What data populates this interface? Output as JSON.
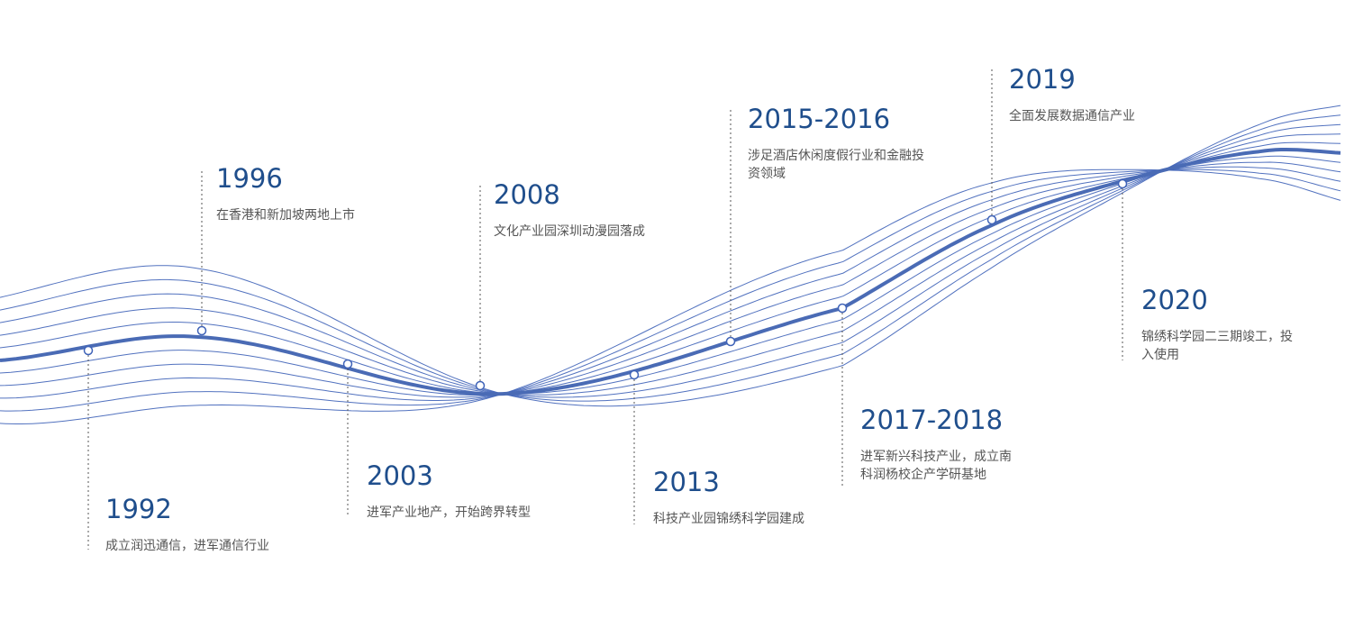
{
  "events": [
    {
      "year": "1992",
      "lines": [
        "成立润迅通信，进军通信行业"
      ]
    },
    {
      "year": "1996",
      "lines": [
        "在香港和新加坡两地上市"
      ]
    },
    {
      "year": "2003",
      "lines": [
        "进军产业地产，开始跨界转型"
      ]
    },
    {
      "year": "2008",
      "lines": [
        "文化产业园深圳动漫园落成"
      ]
    },
    {
      "year": "2013",
      "lines": [
        "科技产业园锦绣科学园建成"
      ]
    },
    {
      "year": "2015-2016",
      "lines": [
        "涉足酒店休闲度假行业和金融投",
        "资领域"
      ]
    },
    {
      "year": "2017-2018",
      "lines": [
        "进军新兴科技产业，成立南",
        "科润杨校企产学研基地"
      ]
    },
    {
      "year": "2019",
      "lines": [
        "全面发展数据通信产业"
      ]
    },
    {
      "year": "2020",
      "lines": [
        "锦绣科学园二三期竣工，投",
        "入使用"
      ]
    }
  ]
}
